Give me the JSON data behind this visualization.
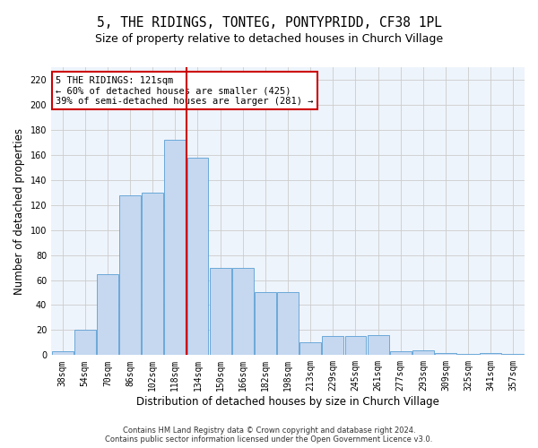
{
  "title": "5, THE RIDINGS, TONTEG, PONTYPRIDD, CF38 1PL",
  "subtitle": "Size of property relative to detached houses in Church Village",
  "xlabel": "Distribution of detached houses by size in Church Village",
  "ylabel": "Number of detached properties",
  "footer_line1": "Contains HM Land Registry data © Crown copyright and database right 2024.",
  "footer_line2": "Contains public sector information licensed under the Open Government Licence v3.0.",
  "bin_labels": [
    "38sqm",
    "54sqm",
    "70sqm",
    "86sqm",
    "102sqm",
    "118sqm",
    "134sqm",
    "150sqm",
    "166sqm",
    "182sqm",
    "198sqm",
    "213sqm",
    "229sqm",
    "245sqm",
    "261sqm",
    "277sqm",
    "293sqm",
    "309sqm",
    "325sqm",
    "341sqm",
    "357sqm"
  ],
  "bar_values": [
    3,
    20,
    65,
    128,
    130,
    172,
    158,
    70,
    70,
    50,
    50,
    10,
    15,
    15,
    16,
    3,
    4,
    2,
    1,
    2,
    1
  ],
  "bar_color": "#c5d8f0",
  "bar_edge_color": "#5a9fd4",
  "grid_color": "#cccccc",
  "bg_color": "#eef4fb",
  "vline_x": 5.5,
  "vline_color": "#cc0000",
  "annotation_text": "5 THE RIDINGS: 121sqm\n← 60% of detached houses are smaller (425)\n39% of semi-detached houses are larger (281) →",
  "annotation_box_color": "#ffffff",
  "annotation_box_edge": "#cc0000",
  "ylim": [
    0,
    230
  ],
  "yticks": [
    0,
    20,
    40,
    60,
    80,
    100,
    120,
    140,
    160,
    180,
    200,
    220
  ],
  "title_fontsize": 10.5,
  "subtitle_fontsize": 9,
  "xlabel_fontsize": 8.5,
  "ylabel_fontsize": 8.5,
  "tick_fontsize": 7,
  "annotation_fontsize": 7.5,
  "footer_fontsize": 6
}
